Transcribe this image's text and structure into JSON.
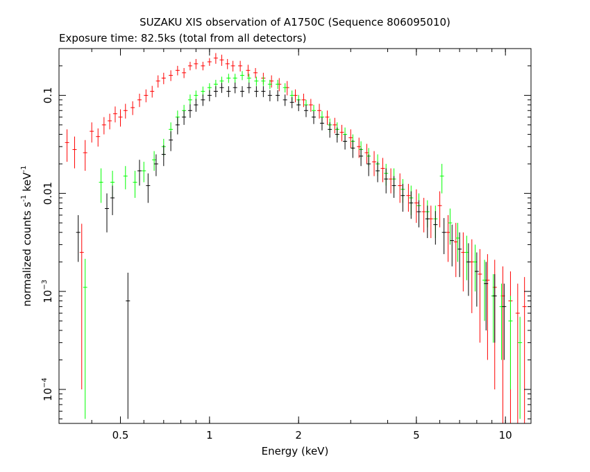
{
  "chart_data": {
    "type": "scatter",
    "title": "SUZAKU XIS observation of A1750C (Sequence 806095010)",
    "subtitle": "Exposure time: 82.5ks (total from all detectors)",
    "xlabel": "Energy (keV)",
    "ylabel": {
      "base": "normalized counts s",
      "sup1": "-1",
      "mid": " keV",
      "sup2": "-1"
    },
    "xscale": "log",
    "yscale": "log",
    "xlim": [
      0.31,
      12.2
    ],
    "ylim": [
      4.5e-05,
      0.3
    ],
    "x_ticks": [
      {
        "value": 0.5,
        "label": "0.5"
      },
      {
        "value": 1,
        "label": "1"
      },
      {
        "value": 2,
        "label": "2"
      },
      {
        "value": 5,
        "label": "5"
      },
      {
        "value": 10,
        "label": "10"
      }
    ],
    "y_ticks": [
      {
        "value": 0.1,
        "label": "0.1",
        "sup": ""
      },
      {
        "value": 0.01,
        "label": "0.01",
        "sup": ""
      },
      {
        "value": 0.001,
        "label": "10",
        "sup": "−3"
      },
      {
        "value": 0.0001,
        "label": "10",
        "sup": "−4"
      }
    ],
    "grid": false,
    "legend": "none",
    "series": [
      {
        "color": "#ff0000",
        "points": [
          [
            0.33,
            0.033,
            0.012
          ],
          [
            0.35,
            0.028,
            0.01
          ],
          [
            0.37,
            0.0025,
            0.0024
          ],
          [
            0.38,
            0.026,
            0.009
          ],
          [
            0.4,
            0.043,
            0.01
          ],
          [
            0.42,
            0.038,
            0.008
          ],
          [
            0.44,
            0.05,
            0.01
          ],
          [
            0.46,
            0.055,
            0.01
          ],
          [
            0.48,
            0.065,
            0.012
          ],
          [
            0.5,
            0.06,
            0.012
          ],
          [
            0.52,
            0.07,
            0.012
          ],
          [
            0.55,
            0.075,
            0.012
          ],
          [
            0.58,
            0.09,
            0.014
          ],
          [
            0.61,
            0.1,
            0.015
          ],
          [
            0.64,
            0.11,
            0.015
          ],
          [
            0.67,
            0.14,
            0.02
          ],
          [
            0.7,
            0.15,
            0.02
          ],
          [
            0.74,
            0.16,
            0.02
          ],
          [
            0.78,
            0.18,
            0.02
          ],
          [
            0.82,
            0.17,
            0.02
          ],
          [
            0.86,
            0.2,
            0.02
          ],
          [
            0.9,
            0.21,
            0.025
          ],
          [
            0.95,
            0.2,
            0.02
          ],
          [
            1.0,
            0.22,
            0.02
          ],
          [
            1.05,
            0.24,
            0.03
          ],
          [
            1.1,
            0.23,
            0.03
          ],
          [
            1.15,
            0.21,
            0.025
          ],
          [
            1.2,
            0.2,
            0.025
          ],
          [
            1.27,
            0.2,
            0.025
          ],
          [
            1.35,
            0.18,
            0.025
          ],
          [
            1.43,
            0.17,
            0.02
          ],
          [
            1.52,
            0.15,
            0.02
          ],
          [
            1.62,
            0.14,
            0.02
          ],
          [
            1.72,
            0.13,
            0.02
          ],
          [
            1.83,
            0.12,
            0.02
          ],
          [
            1.95,
            0.1,
            0.015
          ],
          [
            2.08,
            0.09,
            0.014
          ],
          [
            2.2,
            0.08,
            0.012
          ],
          [
            2.35,
            0.07,
            0.012
          ],
          [
            2.5,
            0.06,
            0.01
          ],
          [
            2.65,
            0.05,
            0.009
          ],
          [
            2.8,
            0.042,
            0.008
          ],
          [
            3.0,
            0.037,
            0.008
          ],
          [
            3.2,
            0.03,
            0.007
          ],
          [
            3.4,
            0.026,
            0.006
          ],
          [
            3.6,
            0.021,
            0.006
          ],
          [
            3.85,
            0.018,
            0.005
          ],
          [
            4.1,
            0.014,
            0.004
          ],
          [
            4.4,
            0.012,
            0.004
          ],
          [
            4.7,
            0.0095,
            0.003
          ],
          [
            5.0,
            0.008,
            0.003
          ],
          [
            5.3,
            0.0065,
            0.0025
          ],
          [
            5.6,
            0.0055,
            0.002
          ],
          [
            6.0,
            0.0075,
            0.003
          ],
          [
            6.4,
            0.004,
            0.002
          ],
          [
            6.8,
            0.0032,
            0.0018
          ],
          [
            7.2,
            0.0025,
            0.0015
          ],
          [
            7.7,
            0.002,
            0.0014
          ],
          [
            8.2,
            0.0015,
            0.0012
          ],
          [
            8.7,
            0.0013,
            0.0011
          ],
          [
            9.2,
            0.0011,
            0.001
          ],
          [
            9.8,
            0.0009,
            0.0009
          ],
          [
            10.4,
            0.0008,
            0.0008
          ],
          [
            11.0,
            0.0006,
            0.0006
          ],
          [
            11.6,
            0.0007,
            0.0007
          ]
        ]
      },
      {
        "color": "#00ff00",
        "points": [
          [
            0.38,
            0.0011,
            0.00105
          ],
          [
            0.43,
            0.013,
            0.005
          ],
          [
            0.47,
            0.013,
            0.004
          ],
          [
            0.52,
            0.015,
            0.004
          ],
          [
            0.56,
            0.013,
            0.004
          ],
          [
            0.6,
            0.017,
            0.004
          ],
          [
            0.65,
            0.022,
            0.005
          ],
          [
            0.7,
            0.03,
            0.006
          ],
          [
            0.74,
            0.045,
            0.008
          ],
          [
            0.78,
            0.06,
            0.01
          ],
          [
            0.82,
            0.07,
            0.01
          ],
          [
            0.86,
            0.09,
            0.012
          ],
          [
            0.9,
            0.1,
            0.012
          ],
          [
            0.95,
            0.11,
            0.013
          ],
          [
            1.0,
            0.12,
            0.013
          ],
          [
            1.05,
            0.13,
            0.014
          ],
          [
            1.1,
            0.14,
            0.015
          ],
          [
            1.16,
            0.15,
            0.016
          ],
          [
            1.22,
            0.15,
            0.016
          ],
          [
            1.29,
            0.16,
            0.017
          ],
          [
            1.36,
            0.15,
            0.016
          ],
          [
            1.44,
            0.14,
            0.015
          ],
          [
            1.52,
            0.14,
            0.015
          ],
          [
            1.6,
            0.13,
            0.014
          ],
          [
            1.7,
            0.13,
            0.014
          ],
          [
            1.8,
            0.12,
            0.013
          ],
          [
            1.9,
            0.1,
            0.012
          ],
          [
            2.0,
            0.09,
            0.011
          ],
          [
            2.12,
            0.08,
            0.01
          ],
          [
            2.25,
            0.07,
            0.01
          ],
          [
            2.4,
            0.06,
            0.009
          ],
          [
            2.55,
            0.05,
            0.008
          ],
          [
            2.7,
            0.045,
            0.008
          ],
          [
            2.87,
            0.04,
            0.007
          ],
          [
            3.05,
            0.034,
            0.006
          ],
          [
            3.25,
            0.028,
            0.006
          ],
          [
            3.45,
            0.024,
            0.005
          ],
          [
            3.7,
            0.02,
            0.005
          ],
          [
            3.95,
            0.016,
            0.004
          ],
          [
            4.2,
            0.014,
            0.004
          ],
          [
            4.5,
            0.011,
            0.003
          ],
          [
            4.8,
            0.009,
            0.003
          ],
          [
            5.1,
            0.0075,
            0.0025
          ],
          [
            5.45,
            0.0065,
            0.002
          ],
          [
            5.8,
            0.0055,
            0.002
          ],
          [
            6.1,
            0.015,
            0.005
          ],
          [
            6.5,
            0.005,
            0.002
          ],
          [
            6.9,
            0.0035,
            0.0015
          ],
          [
            7.4,
            0.0025,
            0.0012
          ],
          [
            7.9,
            0.002,
            0.001
          ],
          [
            8.5,
            0.0013,
            0.0008
          ],
          [
            9.1,
            0.0009,
            0.0006
          ],
          [
            9.7,
            0.0007,
            0.0005
          ],
          [
            10.4,
            0.0005,
            0.0004
          ],
          [
            11.2,
            0.0003,
            0.00025
          ]
        ]
      },
      {
        "color": "#000000",
        "points": [
          [
            0.36,
            0.004,
            0.002
          ],
          [
            0.45,
            0.007,
            0.003
          ],
          [
            0.53,
            0.0008,
            0.00075
          ],
          [
            0.47,
            0.009,
            0.003
          ],
          [
            0.58,
            0.017,
            0.005
          ],
          [
            0.62,
            0.012,
            0.004
          ],
          [
            0.66,
            0.02,
            0.005
          ],
          [
            0.7,
            0.025,
            0.006
          ],
          [
            0.74,
            0.035,
            0.008
          ],
          [
            0.78,
            0.05,
            0.01
          ],
          [
            0.82,
            0.06,
            0.01
          ],
          [
            0.86,
            0.07,
            0.011
          ],
          [
            0.9,
            0.08,
            0.012
          ],
          [
            0.95,
            0.09,
            0.012
          ],
          [
            1.0,
            0.1,
            0.013
          ],
          [
            1.05,
            0.11,
            0.014
          ],
          [
            1.1,
            0.12,
            0.014
          ],
          [
            1.16,
            0.11,
            0.014
          ],
          [
            1.22,
            0.12,
            0.015
          ],
          [
            1.29,
            0.11,
            0.014
          ],
          [
            1.36,
            0.12,
            0.015
          ],
          [
            1.44,
            0.11,
            0.014
          ],
          [
            1.52,
            0.11,
            0.014
          ],
          [
            1.6,
            0.1,
            0.013
          ],
          [
            1.7,
            0.1,
            0.013
          ],
          [
            1.8,
            0.09,
            0.012
          ],
          [
            1.9,
            0.085,
            0.011
          ],
          [
            2.0,
            0.08,
            0.011
          ],
          [
            2.12,
            0.07,
            0.01
          ],
          [
            2.25,
            0.06,
            0.009
          ],
          [
            2.4,
            0.052,
            0.008
          ],
          [
            2.55,
            0.045,
            0.008
          ],
          [
            2.7,
            0.04,
            0.007
          ],
          [
            2.87,
            0.034,
            0.006
          ],
          [
            3.05,
            0.029,
            0.006
          ],
          [
            3.25,
            0.024,
            0.005
          ],
          [
            3.45,
            0.02,
            0.005
          ],
          [
            3.7,
            0.017,
            0.004
          ],
          [
            3.95,
            0.014,
            0.004
          ],
          [
            4.2,
            0.012,
            0.003
          ],
          [
            4.5,
            0.0095,
            0.003
          ],
          [
            4.8,
            0.008,
            0.0025
          ],
          [
            5.1,
            0.0065,
            0.002
          ],
          [
            5.45,
            0.0055,
            0.002
          ],
          [
            5.8,
            0.0048,
            0.0018
          ],
          [
            6.2,
            0.004,
            0.0016
          ],
          [
            6.6,
            0.0033,
            0.0015
          ],
          [
            7.0,
            0.0027,
            0.0013
          ],
          [
            7.5,
            0.002,
            0.0011
          ],
          [
            8.0,
            0.0016,
            0.0009
          ],
          [
            8.6,
            0.0012,
            0.0008
          ],
          [
            9.2,
            0.0009,
            0.0006
          ],
          [
            9.9,
            0.0007,
            0.0005
          ]
        ]
      }
    ]
  }
}
